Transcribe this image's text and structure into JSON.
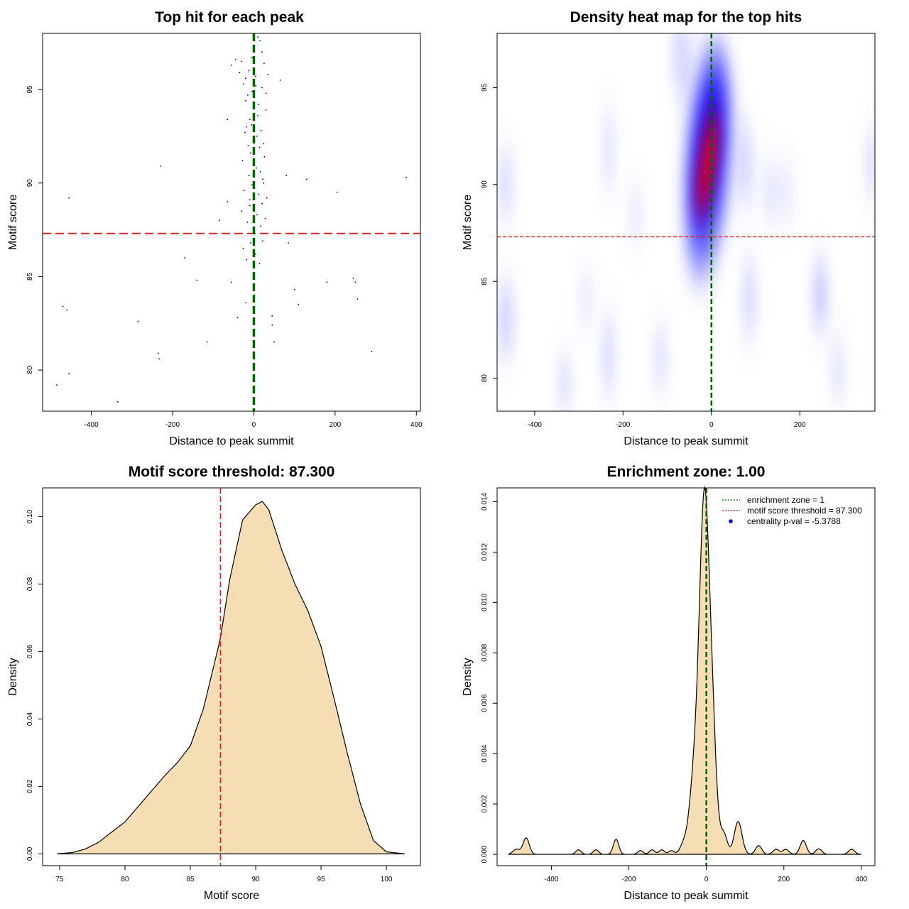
{
  "chart_data": [
    {
      "type": "scatter",
      "title": "Top hit for each peak",
      "xlabel": "Distance to peak summit",
      "ylabel": "Motif score",
      "xlim": [
        -520,
        410
      ],
      "ylim": [
        77.8,
        98.0
      ],
      "xticks": [
        -400,
        -200,
        0,
        200,
        400
      ],
      "yticks": [
        80,
        85,
        90,
        95
      ],
      "points": [
        [
          -485,
          79.2
        ],
        [
          -470,
          83.4
        ],
        [
          -460,
          83.2
        ],
        [
          -455,
          79.8
        ],
        [
          -455,
          89.2
        ],
        [
          -335,
          78.3
        ],
        [
          -285,
          82.6
        ],
        [
          -235,
          80.9
        ],
        [
          -233,
          80.6
        ],
        [
          -230,
          90.9
        ],
        [
          -170,
          86
        ],
        [
          -140,
          84.8
        ],
        [
          -115,
          81.5
        ],
        [
          -85,
          88
        ],
        [
          -65,
          89
        ],
        [
          -65,
          93.4
        ],
        [
          -55,
          84.7
        ],
        [
          -40,
          82.8
        ],
        [
          -20,
          83.6
        ],
        [
          -10,
          89.1
        ],
        [
          45,
          82.9
        ],
        [
          45,
          82.4
        ],
        [
          50,
          81.5
        ],
        [
          65,
          95.5
        ],
        [
          80,
          90.4
        ],
        [
          85,
          86.8
        ],
        [
          100,
          84.3
        ],
        [
          110,
          83.5
        ],
        [
          130,
          90.2
        ],
        [
          180,
          84.7
        ],
        [
          205,
          89.5
        ],
        [
          245,
          84.9
        ],
        [
          250,
          84.7
        ],
        [
          255,
          83.8
        ],
        [
          290,
          81
        ],
        [
          375,
          90.3
        ],
        [
          -55,
          96.3
        ],
        [
          -45,
          96.6
        ],
        [
          -35,
          95.9
        ],
        [
          -30,
          96.5
        ],
        [
          -25,
          95.3
        ],
        [
          -20,
          94.4
        ],
        [
          -15,
          94.7
        ],
        [
          -10,
          93.4
        ],
        [
          -5,
          96.7
        ],
        [
          0,
          96.1
        ],
        [
          5,
          95.2
        ],
        [
          10,
          97.8
        ],
        [
          15,
          97.6
        ],
        [
          20,
          97.0
        ],
        [
          25,
          96.4
        ],
        [
          30,
          94.8
        ],
        [
          35,
          95.8
        ],
        [
          -28,
          91.2
        ],
        [
          -22,
          92.7
        ],
        [
          -18,
          93.0
        ],
        [
          -12,
          90.4
        ],
        [
          -8,
          91.6
        ],
        [
          2,
          92.3
        ],
        [
          6,
          90.8
        ],
        [
          10,
          93.6
        ],
        [
          14,
          91.9
        ],
        [
          18,
          92.8
        ],
        [
          22,
          90.2
        ],
        [
          26,
          91.4
        ],
        [
          30,
          93.9
        ],
        [
          -30,
          88.5
        ],
        [
          -24,
          89.6
        ],
        [
          -16,
          87.9
        ],
        [
          -10,
          88.8
        ],
        [
          -4,
          89.9
        ],
        [
          8,
          88.3
        ],
        [
          12,
          89.4
        ],
        [
          16,
          87.7
        ],
        [
          20,
          88.9
        ],
        [
          24,
          90.0
        ],
        [
          28,
          88.1
        ],
        [
          32,
          89.2
        ],
        [
          -26,
          86.5
        ],
        [
          -18,
          85.9
        ],
        [
          -8,
          86.8
        ],
        [
          4,
          86.2
        ],
        [
          14,
          85.7
        ],
        [
          22,
          86.9
        ],
        [
          -20,
          95.6
        ],
        [
          -12,
          96.0
        ],
        [
          -4,
          94.9
        ],
        [
          4,
          95.7
        ],
        [
          12,
          94.2
        ],
        [
          20,
          95.1
        ],
        [
          -14,
          92.0
        ],
        [
          -6,
          93.1
        ],
        [
          0,
          91.3
        ],
        [
          8,
          92.5
        ],
        [
          16,
          90.6
        ],
        [
          24,
          92.1
        ]
      ]
    },
    {
      "type": "heatmap",
      "title": "Density heat map for the top hits",
      "xlabel": "Distance to peak summit",
      "ylabel": "Motif score",
      "xlim": [
        -485,
        370
      ],
      "ylim": [
        78.3,
        97.8
      ],
      "xticks": [
        -400,
        -200,
        0,
        200
      ],
      "yticks": [
        80,
        85,
        90,
        95
      ],
      "colors": {
        "low": "#ffffff",
        "mid": "#0000ff",
        "high": "#ff0000"
      }
    },
    {
      "type": "area",
      "title": "Motif score threshold: 87.300",
      "xlabel": "Motif score",
      "ylabel": "Density",
      "xlim": [
        73.7,
        102.6
      ],
      "ylim": [
        -0.0035,
        0.1085
      ],
      "xticks": [
        75,
        80,
        85,
        90,
        95,
        100
      ],
      "yticks": [
        0.0,
        0.02,
        0.04,
        0.06,
        0.08,
        0.1
      ],
      "ytick_labels": [
        "0.00",
        "0.02",
        "0.04",
        "0.06",
        "0.08",
        "0.10"
      ],
      "x": [
        74.8,
        76,
        77,
        78,
        79,
        80,
        81,
        82,
        83,
        84,
        85,
        86,
        87,
        87.3,
        88,
        89,
        90,
        90.5,
        91,
        92,
        93,
        94,
        95,
        96,
        97,
        98,
        99,
        100,
        101.4
      ],
      "y": [
        0,
        0.0004,
        0.0015,
        0.0035,
        0.0065,
        0.0095,
        0.014,
        0.0185,
        0.023,
        0.027,
        0.032,
        0.043,
        0.059,
        0.064,
        0.081,
        0.099,
        0.1035,
        0.1045,
        0.102,
        0.09,
        0.08,
        0.072,
        0.0615,
        0.046,
        0.03,
        0.015,
        0.004,
        0.0006,
        0
      ],
      "fill": "#f5deb3",
      "threshold": 87.3
    },
    {
      "type": "area",
      "title": "Enrichment zone: 1.00",
      "xlabel": "Distance to peak summit",
      "ylabel": "Density",
      "xlim": [
        -540,
        435
      ],
      "ylim": [
        -0.00045,
        0.01455
      ],
      "xticks": [
        -400,
        -200,
        0,
        200,
        400
      ],
      "yticks": [
        0.0,
        0.002,
        0.004,
        0.006,
        0.008,
        0.01,
        0.012,
        0.014
      ],
      "ytick_labels": [
        "0.000",
        "0.002",
        "0.004",
        "0.006",
        "0.008",
        "0.010",
        "0.012",
        "0.014"
      ],
      "fill": "#f5deb3",
      "enrichment_center": 0,
      "legend": [
        {
          "label": "enrichment zone = 1",
          "color": "#006400",
          "style": "dotted-line"
        },
        {
          "label": "motif score threshold = 87.300",
          "color": "#ff0000",
          "style": "dotted-line"
        },
        {
          "label": "centrality p-val = -5.3788",
          "color": "#0000ff",
          "style": "point"
        }
      ]
    }
  ],
  "reference_lines": {
    "score_threshold": 87.3,
    "summit": 0,
    "threshold_color": "#dd2222",
    "summit_color": "#006400"
  }
}
